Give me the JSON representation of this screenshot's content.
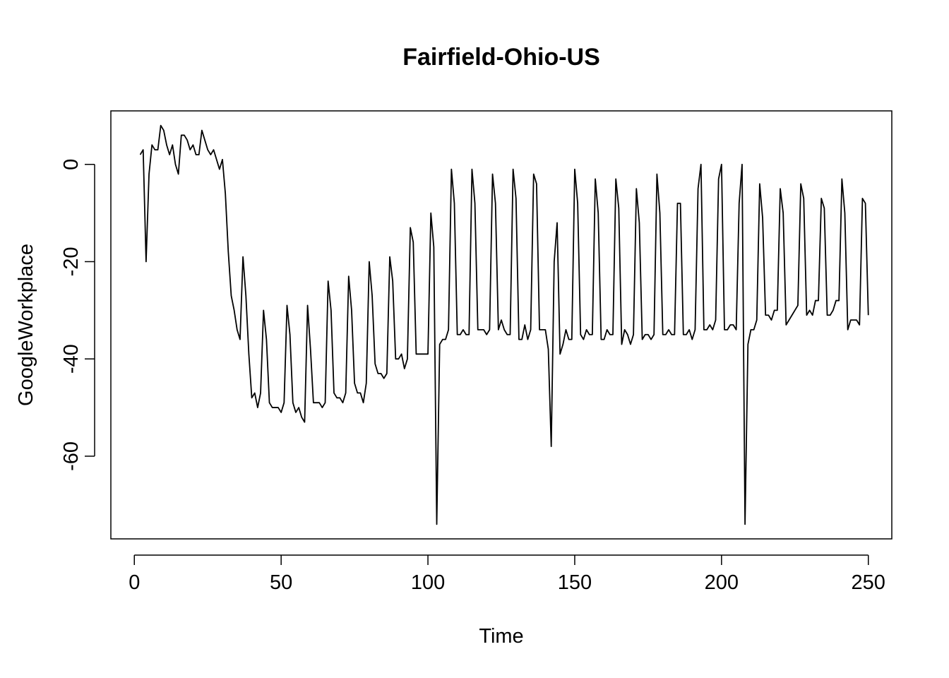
{
  "chart_data": {
    "type": "line",
    "title": "Fairfield-Ohio-US",
    "xlabel": "Time",
    "ylabel": "GoogleWorkplace",
    "xlim": [
      -8,
      258
    ],
    "ylim": [
      -77,
      11
    ],
    "x_ticks": [
      0,
      50,
      100,
      150,
      200,
      250
    ],
    "y_ticks": [
      0,
      -20,
      -40,
      -60
    ],
    "grid": false,
    "legend": "none",
    "line_color": "#000000",
    "series": [
      {
        "x_start": 2,
        "values": [
          2,
          3,
          -20,
          -2,
          4,
          3,
          3,
          8,
          7,
          4,
          2,
          4,
          0,
          -2,
          6,
          6,
          5,
          3,
          4,
          2,
          2,
          7,
          5,
          3,
          2,
          3,
          1,
          -1,
          1,
          -6,
          -18,
          -27,
          -30,
          -34,
          -36,
          -19,
          -27,
          -39,
          -48,
          -47,
          -50,
          -47,
          -30,
          -36,
          -49,
          -50,
          -50,
          -50,
          -51,
          -49,
          -29,
          -35,
          -49,
          -51,
          -50,
          -52,
          -53,
          -29,
          -38,
          -49,
          -49,
          -49,
          -50,
          -49,
          -24,
          -30,
          -47,
          -48,
          -48,
          -49,
          -47,
          -23,
          -30,
          -45,
          -47,
          -47,
          -49,
          -45,
          -20,
          -27,
          -41,
          -43,
          -43,
          -44,
          -43,
          -19,
          -24,
          -40,
          -40,
          -39,
          -42,
          -40,
          -13,
          -16,
          -39,
          -39,
          -39,
          -39,
          -39,
          -10,
          -17,
          -74,
          -37,
          -36,
          -36,
          -34,
          -1,
          -8,
          -35,
          -35,
          -34,
          -35,
          -35,
          -1,
          -8,
          -34,
          -34,
          -34,
          -35,
          -34,
          -2,
          -8,
          -34,
          -32,
          -34,
          -35,
          -35,
          -1,
          -7,
          -36,
          -36,
          -33,
          -36,
          -34,
          -2,
          -4,
          -34,
          -34,
          -34,
          -38,
          -58,
          -20,
          -12,
          -39,
          -37,
          -34,
          -36,
          -36,
          -1,
          -8,
          -35,
          -36,
          -34,
          -35,
          -35,
          -3,
          -10,
          -36,
          -36,
          -34,
          -35,
          -35,
          -3,
          -9,
          -37,
          -34,
          -35,
          -37,
          -35,
          -5,
          -12,
          -36,
          -35,
          -35,
          -36,
          -35,
          -2,
          -10,
          -35,
          -35,
          -34,
          -35,
          -35,
          -8,
          -8,
          -35,
          -35,
          -34,
          -36,
          -34,
          -5,
          0,
          -34,
          -34,
          -33,
          -34,
          -32,
          -3,
          0,
          -34,
          -34,
          -33,
          -33,
          -34,
          -8,
          0,
          -74,
          -37,
          -34,
          -34,
          -32,
          -4,
          -11,
          -31,
          -31,
          -32,
          -30,
          -30,
          -5,
          -10,
          -33,
          -32,
          -31,
          -30,
          -29,
          -4,
          -7,
          -31,
          -30,
          -31,
          -28,
          -28,
          -7,
          -9,
          -31,
          -31,
          -30,
          -28,
          -28,
          -3,
          -10,
          -34,
          -32,
          -32,
          -32,
          -33,
          -7,
          -8,
          -31
        ]
      }
    ]
  }
}
